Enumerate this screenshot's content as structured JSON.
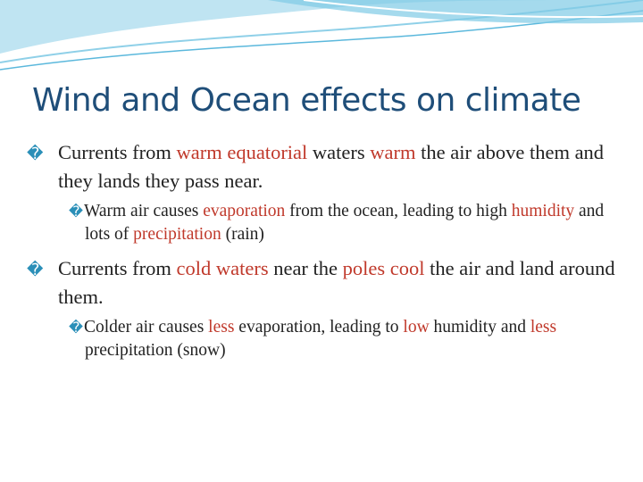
{
  "title": "Wind and Ocean effects on climate",
  "highlight_color": "#c0392b",
  "bullets": [
    {
      "level": 1,
      "marker": "�",
      "runs": [
        {
          "text": "Currents from ",
          "highlight": false
        },
        {
          "text": "warm equatorial",
          "highlight": true
        },
        {
          "text": " waters ",
          "highlight": false
        },
        {
          "text": "warm",
          "highlight": true
        },
        {
          "text": " the air above them and they lands they pass near.",
          "highlight": false
        }
      ]
    },
    {
      "level": 2,
      "marker": "�",
      "runs": [
        {
          "text": "Warm air causes ",
          "highlight": false
        },
        {
          "text": "evaporation",
          "highlight": true
        },
        {
          "text": " from the ocean, leading to high ",
          "highlight": false
        },
        {
          "text": "humidity",
          "highlight": true
        },
        {
          "text": " and lots of ",
          "highlight": false
        },
        {
          "text": "precipitation",
          "highlight": true
        },
        {
          "text": " (rain)",
          "highlight": false
        }
      ]
    },
    {
      "level": 1,
      "marker": "�",
      "runs": [
        {
          "text": "Currents from ",
          "highlight": false
        },
        {
          "text": "cold waters",
          "highlight": true
        },
        {
          "text": " near the ",
          "highlight": false
        },
        {
          "text": "poles cool",
          "highlight": true
        },
        {
          "text": " the air and land around them.",
          "highlight": false
        }
      ]
    },
    {
      "level": 2,
      "marker": "�",
      "runs": [
        {
          "text": "Colder air causes ",
          "highlight": false
        },
        {
          "text": "less",
          "highlight": true
        },
        {
          "text": " evaporation, leading to ",
          "highlight": false
        },
        {
          "text": "low",
          "highlight": true
        },
        {
          "text": " humidity and ",
          "highlight": false
        },
        {
          "text": "less",
          "highlight": true
        },
        {
          "text": " precipitation (snow)",
          "highlight": false
        }
      ]
    }
  ]
}
